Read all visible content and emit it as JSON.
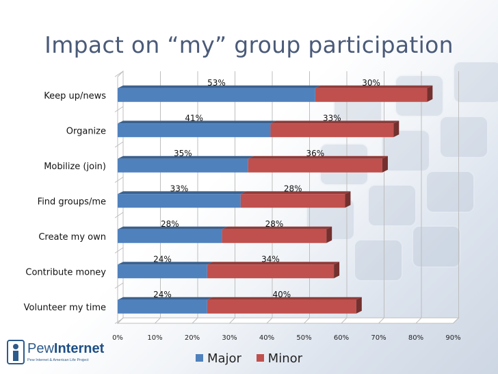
{
  "title": "Impact on “my” group participation",
  "logo": {
    "brand_plain": "Pew",
    "brand_bold": "Internet",
    "tagline": "Pew Internet & American Life Project"
  },
  "colors": {
    "major": "#4f81bd",
    "minor": "#c0504d"
  },
  "chart_data": {
    "type": "bar",
    "orientation": "horizontal",
    "stacked": true,
    "title": "Impact on “my” group participation",
    "categories": [
      "Keep up/news",
      "Organize",
      "Mobilize (join)",
      "Find groups/me",
      "Create my own",
      "Contribute money",
      "Volunteer my time"
    ],
    "series": [
      {
        "name": "Major",
        "values": [
          53,
          41,
          35,
          33,
          28,
          24,
          24
        ],
        "labels": [
          "53%",
          "41%",
          "35%",
          "33%",
          "28%",
          "24%",
          "24%"
        ]
      },
      {
        "name": "Minor",
        "values": [
          30,
          33,
          36,
          28,
          28,
          34,
          40
        ],
        "labels": [
          "30%",
          "33%",
          "36%",
          "28%",
          "28%",
          "34%",
          "40%"
        ]
      }
    ],
    "xlim": [
      0,
      90
    ],
    "xticks": [
      "0%",
      "10%",
      "20%",
      "30%",
      "40%",
      "50%",
      "60%",
      "70%",
      "80%",
      "90%"
    ],
    "grid": true,
    "legend": "bottom"
  }
}
